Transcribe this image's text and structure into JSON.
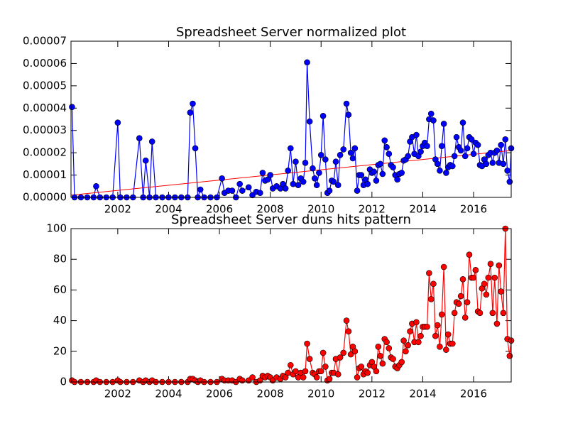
{
  "chart_data": [
    {
      "type": "line",
      "title": "Spreadsheet Server normalized plot",
      "x": [
        2000.2,
        2000.3,
        2000.55,
        2000.8,
        2001.05,
        2001.15,
        2001.3,
        2001.55,
        2001.8,
        2002,
        2002.1,
        2002.35,
        2002.6,
        2002.85,
        2003,
        2003.1,
        2003.25,
        2003.35,
        2003.5,
        2003.75,
        2004,
        2004.25,
        2004.5,
        2004.75,
        2004.85,
        2004.95,
        2005.05,
        2005.15,
        2005.25,
        2005.4,
        2005.65,
        2005.9,
        2006.1,
        2006.2,
        2006.35,
        2006.5,
        2006.65,
        2006.8,
        2006.9,
        2007.15,
        2007.3,
        2007.45,
        2007.6,
        2007.7,
        2007.8,
        2007.9,
        2008,
        2008.1,
        2008.25,
        2008.4,
        2008.5,
        2008.6,
        2008.7,
        2008.8,
        2008.9,
        2009,
        2009.1,
        2009.2,
        2009.3,
        2009.38,
        2009.45,
        2009.55,
        2009.67,
        2009.75,
        2009.83,
        2009.92,
        2010,
        2010.08,
        2010.17,
        2010.25,
        2010.33,
        2010.42,
        2010.5,
        2010.58,
        2010.67,
        2010.75,
        2010.88,
        2011,
        2011.08,
        2011.17,
        2011.25,
        2011.33,
        2011.42,
        2011.5,
        2011.58,
        2011.67,
        2011.75,
        2011.83,
        2011.92,
        2012,
        2012.08,
        2012.17,
        2012.25,
        2012.33,
        2012.42,
        2012.5,
        2012.58,
        2012.67,
        2012.75,
        2012.83,
        2012.92,
        2013,
        2013.08,
        2013.17,
        2013.25,
        2013.33,
        2013.42,
        2013.5,
        2013.58,
        2013.67,
        2013.75,
        2013.83,
        2013.92,
        2014,
        2014.08,
        2014.17,
        2014.25,
        2014.33,
        2014.42,
        2014.5,
        2014.58,
        2014.67,
        2014.75,
        2014.83,
        2014.92,
        2015,
        2015.08,
        2015.17,
        2015.25,
        2015.33,
        2015.42,
        2015.5,
        2015.58,
        2015.67,
        2015.75,
        2015.83,
        2015.92,
        2016,
        2016.08,
        2016.17,
        2016.25,
        2016.33,
        2016.42,
        2016.5,
        2016.58,
        2016.67,
        2016.75,
        2016.83,
        2016.92,
        2017,
        2017.08,
        2017.17,
        2017.25,
        2017.33,
        2017.42,
        2017.48
      ],
      "series": [
        {
          "color": "#0000ff",
          "values": [
            4.05e-05,
            0,
            0,
            0,
            0,
            5e-06,
            0,
            0,
            0,
            3.35e-05,
            0,
            0,
            0,
            2.65e-05,
            0,
            1.65e-05,
            0,
            2.5e-05,
            0,
            0,
            0,
            0,
            0,
            0,
            3.8e-05,
            4.2e-05,
            2.2e-05,
            0,
            3.5e-06,
            0,
            0,
            0,
            8.5e-06,
            2e-06,
            3e-06,
            3e-06,
            0,
            6e-06,
            3e-06,
            4.5e-06,
            1e-06,
            2.5e-06,
            2e-06,
            1.1e-05,
            7.5e-06,
            8e-06,
            1e-05,
            4e-06,
            5e-06,
            4e-06,
            6e-06,
            4e-06,
            1.2e-05,
            2.2e-05,
            6e-06,
            1.6e-05,
            5.5e-06,
            8.5e-06,
            7e-06,
            1.55e-05,
            6.05e-05,
            3.4e-05,
            1.3e-05,
            8.5e-06,
            5.5e-06,
            1.1e-05,
            1.9e-05,
            3.65e-05,
            1.7e-05,
            2e-06,
            3e-06,
            7.5e-06,
            7e-06,
            1.6e-05,
            5.5e-06,
            1.9e-05,
            2.15e-05,
            4.2e-05,
            3.7e-05,
            2e-05,
            1.75e-05,
            2.2e-05,
            3e-06,
            1e-05,
            1e-05,
            5.5e-06,
            8e-06,
            6e-06,
            1.25e-05,
            1.1e-05,
            1.15e-05,
            7.5e-06,
            1.45e-05,
            1.5e-05,
            1.05e-05,
            2.55e-05,
            2.25e-05,
            1.95e-05,
            1.45e-05,
            1.35e-05,
            1e-05,
            8e-06,
            1.05e-05,
            1.1e-05,
            1.65e-05,
            1.7e-05,
            1.85e-05,
            2.5e-05,
            2.7e-05,
            1.95e-05,
            2.8e-05,
            1.85e-05,
            2.05e-05,
            2.3e-05,
            2.45e-05,
            2.3e-05,
            3.5e-05,
            3.75e-05,
            3.45e-05,
            1.7e-05,
            1.5e-05,
            1.2e-05,
            2.3e-05,
            3.3e-05,
            1.1e-05,
            1.35e-05,
            1.45e-05,
            1.4e-05,
            1.85e-05,
            2.7e-05,
            2.25e-05,
            2.1e-05,
            3.35e-05,
            1.85e-05,
            2.2e-05,
            2.7e-05,
            2.6e-05,
            1.95e-05,
            2.45e-05,
            2.35e-05,
            1.45e-05,
            1.4e-05,
            1.7e-05,
            1.5e-05,
            1.9e-05,
            2e-05,
            1.55e-05,
            2e-05,
            2.1e-05,
            1.55e-05,
            2.35e-05,
            1.5e-05,
            2.6e-05,
            1.2e-05,
            7e-06,
            2.2e-05
          ]
        }
      ],
      "trend_line": {
        "x": [
          2000.16,
          2017.48
        ],
        "values": [
          1e-06,
          2.1e-05
        ],
        "color": "#ff0000"
      },
      "xlim": [
        2000.16,
        2017.48
      ],
      "ylim": [
        0,
        7e-05
      ],
      "xticks": [
        2002,
        2004,
        2006,
        2008,
        2010,
        2012,
        2014,
        2016
      ],
      "yticks": [
        {
          "value": 0,
          "label": "0.00000"
        },
        {
          "value": 1e-05,
          "label": "0.00001"
        },
        {
          "value": 2e-05,
          "label": "0.00002"
        },
        {
          "value": 3e-05,
          "label": "0.00003"
        },
        {
          "value": 4e-05,
          "label": "0.00004"
        },
        {
          "value": 5e-05,
          "label": "0.00005"
        },
        {
          "value": 6e-05,
          "label": "0.00006"
        },
        {
          "value": 7e-05,
          "label": "0.00007"
        }
      ]
    },
    {
      "type": "line",
      "title": "Spreadsheet Server duns hits pattern",
      "x": [
        2000.2,
        2000.3,
        2000.55,
        2000.8,
        2001.05,
        2001.15,
        2001.3,
        2001.55,
        2001.8,
        2002,
        2002.1,
        2002.35,
        2002.6,
        2002.85,
        2003,
        2003.1,
        2003.25,
        2003.35,
        2003.5,
        2003.75,
        2004,
        2004.25,
        2004.5,
        2004.75,
        2004.85,
        2004.95,
        2005.05,
        2005.15,
        2005.25,
        2005.4,
        2005.65,
        2005.9,
        2006.1,
        2006.2,
        2006.35,
        2006.5,
        2006.65,
        2006.8,
        2006.9,
        2007.15,
        2007.3,
        2007.45,
        2007.6,
        2007.7,
        2007.8,
        2007.9,
        2008,
        2008.1,
        2008.25,
        2008.4,
        2008.5,
        2008.6,
        2008.7,
        2008.8,
        2008.9,
        2009,
        2009.1,
        2009.2,
        2009.3,
        2009.38,
        2009.45,
        2009.55,
        2009.67,
        2009.75,
        2009.83,
        2009.92,
        2010,
        2010.08,
        2010.17,
        2010.25,
        2010.33,
        2010.42,
        2010.5,
        2010.58,
        2010.67,
        2010.75,
        2010.88,
        2011,
        2011.08,
        2011.17,
        2011.25,
        2011.33,
        2011.42,
        2011.5,
        2011.58,
        2011.67,
        2011.75,
        2011.83,
        2011.92,
        2012,
        2012.08,
        2012.17,
        2012.25,
        2012.33,
        2012.42,
        2012.5,
        2012.58,
        2012.67,
        2012.75,
        2012.83,
        2012.92,
        2013,
        2013.08,
        2013.17,
        2013.25,
        2013.33,
        2013.42,
        2013.5,
        2013.58,
        2013.67,
        2013.75,
        2013.83,
        2013.92,
        2014,
        2014.08,
        2014.17,
        2014.25,
        2014.33,
        2014.42,
        2014.5,
        2014.58,
        2014.67,
        2014.75,
        2014.83,
        2014.92,
        2015,
        2015.08,
        2015.17,
        2015.25,
        2015.33,
        2015.42,
        2015.5,
        2015.58,
        2015.67,
        2015.75,
        2015.83,
        2015.92,
        2016,
        2016.08,
        2016.17,
        2016.25,
        2016.33,
        2016.42,
        2016.5,
        2016.58,
        2016.67,
        2016.75,
        2016.83,
        2016.92,
        2017,
        2017.08,
        2017.17,
        2017.25,
        2017.33,
        2017.42,
        2017.48
      ],
      "series": [
        {
          "color": "#ff0000",
          "values": [
            1,
            0,
            0,
            0,
            0,
            1,
            0,
            0,
            0,
            1,
            0,
            0,
            0,
            1,
            0,
            1,
            0,
            1,
            0,
            0,
            0,
            0,
            0,
            0,
            2,
            2,
            1,
            0,
            1,
            0,
            0,
            0,
            2,
            1,
            1,
            1,
            0,
            2,
            1,
            1,
            3,
            0,
            1,
            4,
            3,
            4,
            3,
            1,
            3,
            2,
            4,
            3,
            6,
            11,
            5,
            7,
            3,
            6,
            3,
            7,
            25,
            15,
            6,
            5,
            3,
            7,
            7,
            19,
            10,
            1,
            2,
            6,
            6,
            15,
            5,
            16,
            19,
            40,
            33,
            18,
            23,
            20,
            3,
            9,
            10,
            5,
            7,
            6,
            11,
            13,
            10,
            7,
            23,
            17,
            12,
            28,
            26,
            22,
            16,
            15,
            10,
            9,
            11,
            13,
            27,
            20,
            24,
            33,
            38,
            26,
            39,
            26,
            30,
            36,
            36,
            36,
            71,
            54,
            64,
            30,
            37,
            23,
            44,
            75,
            21,
            31,
            25,
            25,
            45,
            52,
            51,
            56,
            67,
            42,
            52,
            83,
            68,
            68,
            73,
            46,
            45,
            61,
            64,
            57,
            68,
            77,
            45,
            68,
            38,
            76,
            59,
            45,
            100,
            28,
            17,
            27
          ]
        }
      ],
      "xlim": [
        2000.16,
        2017.48
      ],
      "ylim": [
        0,
        100
      ],
      "xticks": [
        2002,
        2004,
        2006,
        2008,
        2010,
        2012,
        2014,
        2016
      ],
      "yticks": [
        0,
        20,
        40,
        60,
        80,
        100
      ]
    }
  ]
}
